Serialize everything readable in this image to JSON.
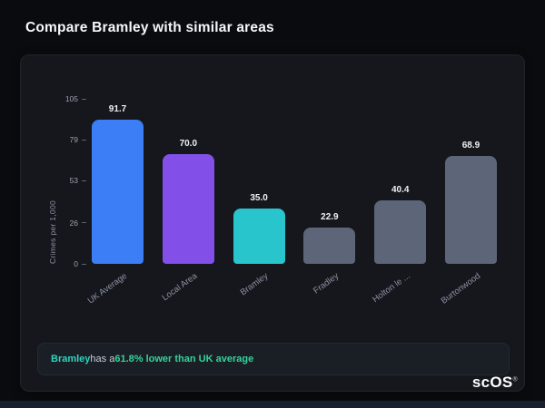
{
  "page": {
    "title": "Compare Bramley with similar areas"
  },
  "chart_data": {
    "type": "bar",
    "categories": [
      "UK Average",
      "Local Area",
      "Bramley",
      "Fradley",
      "Holton le ...",
      "Burtonwood"
    ],
    "values": [
      91.7,
      70.0,
      35.0,
      22.9,
      40.4,
      68.9
    ],
    "value_labels": [
      "91.7",
      "70.0",
      "35.0",
      "22.9",
      "40.4",
      "68.9"
    ],
    "bar_colors": [
      "#3b7ef5",
      "#8250e8",
      "#29c5cc",
      "#5c6678",
      "#5c6678",
      "#5c6678"
    ],
    "title": "",
    "xlabel": "",
    "ylabel": "Crimes per 1,000",
    "yticks": [
      0,
      26,
      53,
      79,
      105
    ],
    "ylim": [
      0,
      105
    ],
    "grid": false,
    "legend": false
  },
  "summary": {
    "area": "Bramley",
    "mid": " has a ",
    "highlight": "61.8% lower than UK average"
  },
  "logo": {
    "text": "scOS",
    "registered": "®"
  }
}
